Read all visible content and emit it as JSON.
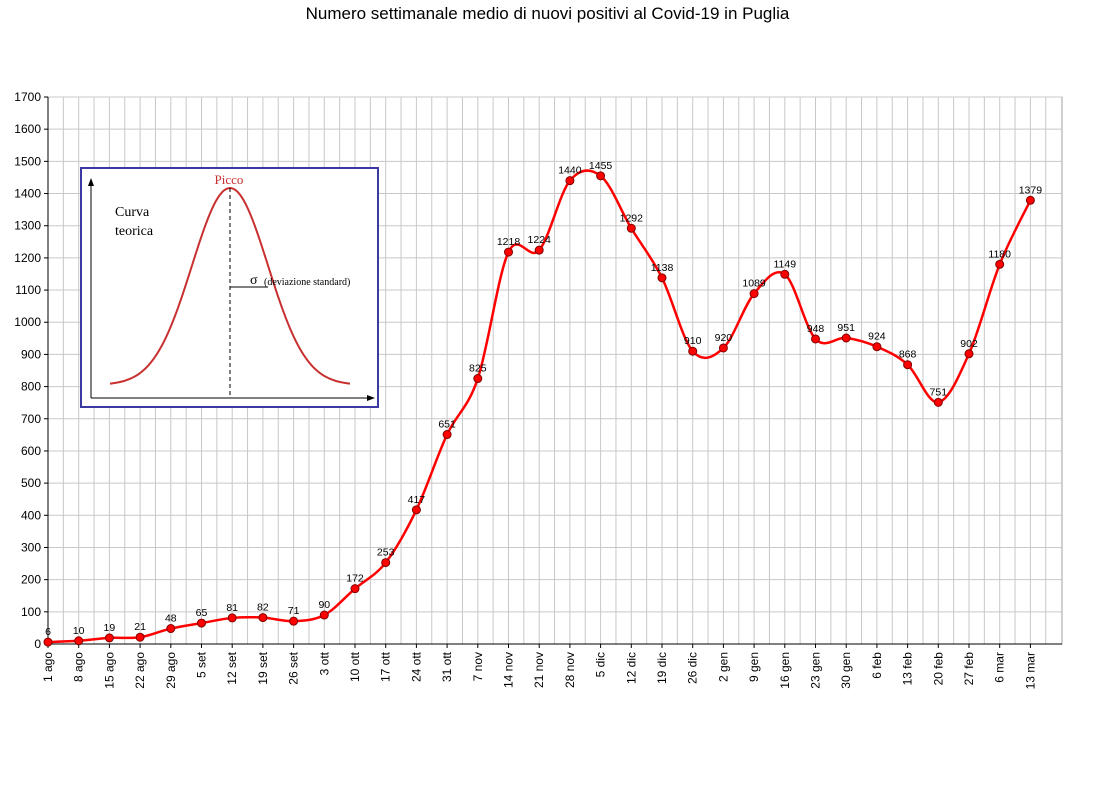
{
  "chart_data": {
    "type": "line",
    "title": "Numero settimanale medio di nuovi positivi al Covid-19 in Puglia",
    "xlabel": "",
    "ylabel": "",
    "ylim": [
      0,
      1700
    ],
    "yticks": [
      0,
      100,
      200,
      300,
      400,
      500,
      600,
      700,
      800,
      900,
      1000,
      1100,
      1200,
      1300,
      1400,
      1500,
      1600,
      1700
    ],
    "grid": true,
    "categories": [
      "1 ago",
      "8 ago",
      "15 ago",
      "22 ago",
      "29 ago",
      "5 set",
      "12 set",
      "19 set",
      "26 set",
      "3 ott",
      "10 ott",
      "17 ott",
      "24 ott",
      "31 ott",
      "7 nov",
      "14 nov",
      "21 nov",
      "28 nov",
      "5 dic",
      "12 dic",
      "19 dic",
      "26 dic",
      "2 gen",
      "9 gen",
      "16 gen",
      "23 gen",
      "30 gen",
      "6 feb",
      "13 feb",
      "20 feb",
      "27 feb",
      "6 mar",
      "13 mar"
    ],
    "series": [
      {
        "color": "#ff0000",
        "values": [
          6,
          10,
          19,
          21,
          48,
          65,
          81,
          82,
          71,
          90,
          172,
          253,
          417,
          651,
          825,
          1218,
          1224,
          1440,
          1455,
          1292,
          1138,
          910,
          920,
          1089,
          1149,
          948,
          951,
          924,
          868,
          751,
          902,
          1180,
          1379
        ]
      }
    ],
    "inset": {
      "title": "Picco",
      "label_line1": "Curva",
      "label_line2": "teorica",
      "sigma": "σ",
      "sigma_note": "(deviazione standard)",
      "border_color": "#3a3aa0",
      "curve_color": "#c83030"
    }
  }
}
